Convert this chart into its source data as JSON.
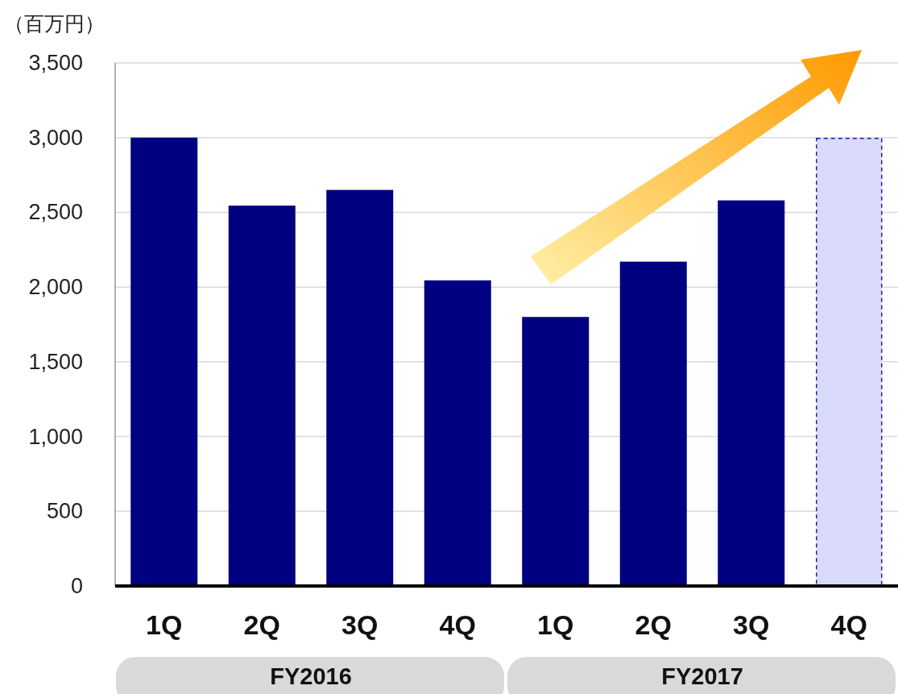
{
  "chart_data": {
    "type": "bar",
    "ylabel": "（百万円）",
    "categories": [
      "1Q",
      "2Q",
      "3Q",
      "4Q",
      "1Q",
      "2Q",
      "3Q",
      "4Q"
    ],
    "series": [
      {
        "color": "#000080",
        "values": [
          3000,
          2545,
          2650,
          2045,
          1800,
          2170,
          2580,
          null
        ]
      },
      {
        "color": "#dadafc",
        "line_style": "dashed",
        "values": [
          null,
          null,
          null,
          null,
          null,
          null,
          null,
          3000
        ]
      }
    ],
    "ylim": [
      0,
      3500
    ],
    "yticks": [
      0,
      {
        "value": 500,
        "label": "500"
      },
      {
        "value": 1000,
        "label": "1,000"
      },
      {
        "value": 1500,
        "label": "1,500"
      },
      {
        "value": 2000,
        "label": "2,000"
      },
      {
        "value": 2500,
        "label": "2,500"
      },
      {
        "value": 3000,
        "label": "3,000"
      },
      {
        "value": 3500,
        "label": "3,500"
      }
    ],
    "grid": "y",
    "annotations": [
      "FY2016",
      "FY2017"
    ]
  }
}
